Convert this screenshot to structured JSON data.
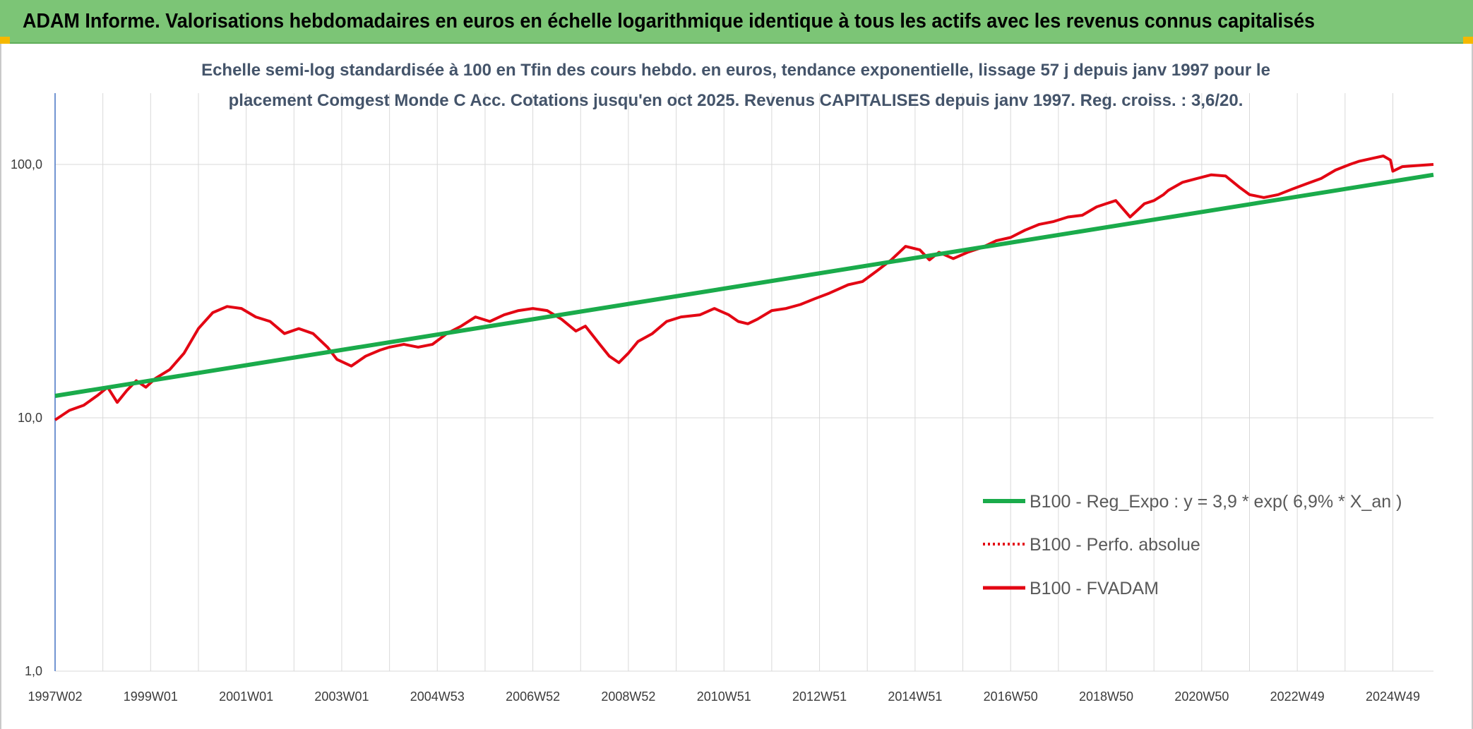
{
  "header": {
    "title": "ADAM Informe. Valorisations hebdomadaires en euros en échelle logarithmique identique à tous les actifs avec les revenus connus capitalisés"
  },
  "colors": {
    "header_bg": "#7cc576",
    "corner": "#f5b800",
    "regression": "#1aab4b",
    "fvadam": "#e30613",
    "perfo": "#e30613",
    "grid": "#d9d9d9",
    "subtitle": "#44546a"
  },
  "chart_data": {
    "type": "line",
    "title_lines": [
      "Echelle semi-log standardisée à 100 en Tfin des cours hebdo. en euros, tendance exponentielle, lissage 57 j depuis janv 1997 pour le",
      "placement Comgest Monde C Acc. Cotations jusqu'en oct 2025. Revenus CAPITALISES depuis janv 1997. Reg. croiss. : 3,6/20."
    ],
    "y_scale": "log",
    "ylim": [
      1,
      200
    ],
    "y_ticks": [
      {
        "value": 1,
        "label": "1,0"
      },
      {
        "value": 10,
        "label": "10,0"
      },
      {
        "value": 100,
        "label": "100,0"
      }
    ],
    "xlim": [
      1997.0,
      2025.85
    ],
    "x_ticks": [
      {
        "value": 1997.0,
        "label": "1997W02"
      },
      {
        "value": 1999.0,
        "label": "1999W01"
      },
      {
        "value": 2001.0,
        "label": "2001W01"
      },
      {
        "value": 2003.0,
        "label": "2003W01"
      },
      {
        "value": 2005.0,
        "label": "2004W53"
      },
      {
        "value": 2007.0,
        "label": "2006W52"
      },
      {
        "value": 2009.0,
        "label": "2008W52"
      },
      {
        "value": 2011.0,
        "label": "2010W51"
      },
      {
        "value": 2013.0,
        "label": "2012W51"
      },
      {
        "value": 2015.0,
        "label": "2014W51"
      },
      {
        "value": 2017.0,
        "label": "2016W50"
      },
      {
        "value": 2019.0,
        "label": "2018W50"
      },
      {
        "value": 2021.0,
        "label": "2020W50"
      },
      {
        "value": 2023.0,
        "label": "2022W49"
      },
      {
        "value": 2025.0,
        "label": "2024W49"
      }
    ],
    "legend_position": "bottom-right",
    "series": [
      {
        "name": "B100 - Reg_Expo : y = 3,9 * exp( 6,9% *  X_an )",
        "style": "solid-thick",
        "x": [
          1997.0,
          2025.85
        ],
        "y": [
          12.2,
          91.0
        ]
      },
      {
        "name": "B100 - Perfo. absolue",
        "style": "dotted",
        "x": [],
        "y": []
      },
      {
        "name": "B100 - FVADAM",
        "style": "solid",
        "x": [
          1997.0,
          1997.3,
          1997.6,
          1997.9,
          1998.1,
          1998.3,
          1998.5,
          1998.7,
          1998.9,
          1999.1,
          1999.4,
          1999.7,
          2000.0,
          2000.3,
          2000.6,
          2000.9,
          2001.2,
          2001.5,
          2001.8,
          2002.1,
          2002.4,
          2002.7,
          2002.9,
          2003.2,
          2003.5,
          2003.8,
          2004.0,
          2004.3,
          2004.6,
          2004.9,
          2005.2,
          2005.5,
          2005.8,
          2006.1,
          2006.4,
          2006.7,
          2007.0,
          2007.3,
          2007.6,
          2007.9,
          2008.1,
          2008.4,
          2008.6,
          2008.8,
          2009.0,
          2009.2,
          2009.5,
          2009.8,
          2010.1,
          2010.5,
          2010.8,
          2011.1,
          2011.3,
          2011.5,
          2011.7,
          2012.0,
          2012.3,
          2012.6,
          2012.9,
          2013.2,
          2013.6,
          2013.9,
          2014.2,
          2014.5,
          2014.8,
          2015.1,
          2015.3,
          2015.5,
          2015.8,
          2016.1,
          2016.4,
          2016.7,
          2017.0,
          2017.3,
          2017.6,
          2017.9,
          2018.2,
          2018.5,
          2018.8,
          2019.0,
          2019.2,
          2019.5,
          2019.8,
          2020.0,
          2020.2,
          2020.3,
          2020.6,
          2020.9,
          2021.2,
          2021.5,
          2021.8,
          2022.0,
          2022.3,
          2022.6,
          2022.9,
          2023.2,
          2023.5,
          2023.8,
          2024.1,
          2024.3,
          2024.6,
          2024.8,
          2024.95,
          2025.0,
          2025.2,
          2025.5,
          2025.85
        ],
        "y": [
          9.8,
          10.7,
          11.2,
          12.3,
          13.2,
          11.5,
          12.8,
          14.0,
          13.2,
          14.3,
          15.5,
          18.0,
          22.5,
          26.0,
          27.5,
          27.0,
          25.0,
          24.0,
          21.5,
          22.5,
          21.5,
          19.0,
          17.0,
          16.0,
          17.5,
          18.5,
          19.0,
          19.5,
          19.0,
          19.5,
          21.5,
          23.0,
          25.0,
          24.0,
          25.5,
          26.5,
          27.0,
          26.5,
          24.5,
          22.0,
          23.0,
          19.5,
          17.5,
          16.5,
          18.0,
          20.0,
          21.5,
          24.0,
          25.0,
          25.5,
          27.0,
          25.5,
          24.0,
          23.5,
          24.5,
          26.5,
          27.0,
          28.0,
          29.5,
          31.0,
          33.5,
          34.5,
          38.0,
          42.0,
          47.5,
          46.0,
          42.0,
          45.0,
          42.5,
          45.0,
          47.0,
          50.0,
          51.5,
          55.0,
          58.0,
          59.5,
          62.0,
          63.0,
          68.0,
          70.0,
          72.0,
          62.0,
          70.0,
          72.0,
          76.0,
          79.0,
          85.0,
          88.0,
          91.0,
          90.0,
          81.0,
          76.0,
          74.0,
          76.0,
          80.0,
          84.0,
          88.0,
          95.0,
          100.0,
          103.0,
          106.0,
          108.0,
          104.0,
          94.0,
          98.0,
          99.0,
          100.0
        ]
      }
    ]
  }
}
